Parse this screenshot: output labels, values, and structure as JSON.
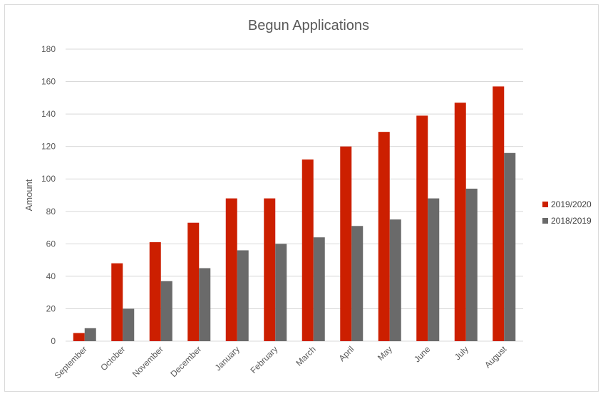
{
  "chart_data": {
    "type": "bar",
    "title": "Begun Applications",
    "xlabel": "",
    "ylabel": "Amount",
    "ylim": [
      0,
      180
    ],
    "yticks": [
      0,
      20,
      40,
      60,
      80,
      100,
      120,
      140,
      160,
      180
    ],
    "grid": true,
    "legend_position": "right",
    "categories": [
      "September",
      "October",
      "November",
      "December",
      "January",
      "February",
      "March",
      "April",
      "May",
      "June",
      "July",
      "August"
    ],
    "series": [
      {
        "name": "2019/2020",
        "color": "#cc1f00",
        "values": [
          5,
          48,
          61,
          73,
          88,
          88,
          112,
          120,
          129,
          139,
          147,
          157
        ]
      },
      {
        "name": "2018/2019",
        "color": "#6a6a6a",
        "values": [
          8,
          20,
          37,
          45,
          56,
          60,
          64,
          71,
          75,
          88,
          94,
          116
        ]
      }
    ]
  }
}
